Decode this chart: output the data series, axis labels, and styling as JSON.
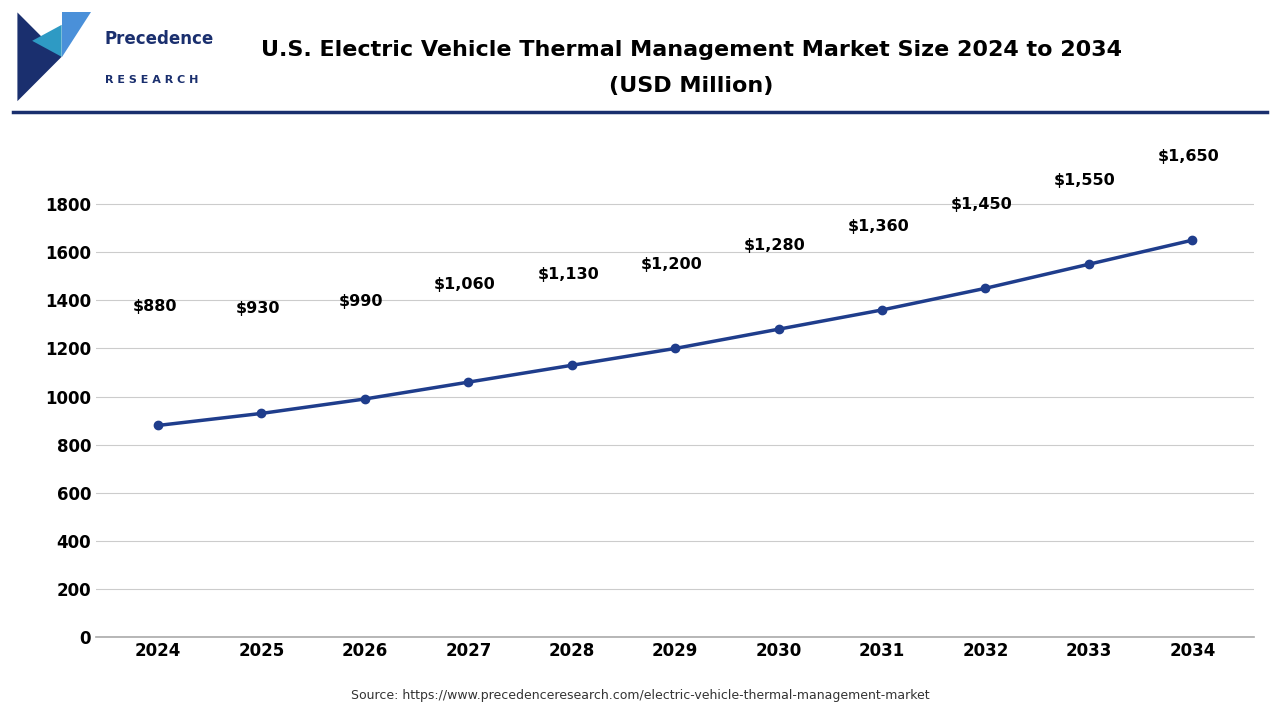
{
  "title_line1": "U.S. Electric Vehicle Thermal Management Market Size 2024 to 2034",
  "title_line2": "(USD Million)",
  "years": [
    2024,
    2025,
    2026,
    2027,
    2028,
    2029,
    2030,
    2031,
    2032,
    2033,
    2034
  ],
  "values": [
    880,
    930,
    990,
    1060,
    1130,
    1200,
    1280,
    1360,
    1450,
    1550,
    1650
  ],
  "labels": [
    "$880",
    "$930",
    "$990",
    "$1,060",
    "$1,130",
    "$1,200",
    "$1,280",
    "$1,360",
    "$1,450",
    "$1,550",
    "$1,650"
  ],
  "line_color": "#1f3d8c",
  "marker_color": "#1f3d8c",
  "bg_color": "#ffffff",
  "plot_bg_color": "#ffffff",
  "grid_color": "#cccccc",
  "ylim": [
    0,
    1900
  ],
  "yticks": [
    0,
    200,
    400,
    600,
    800,
    1000,
    1200,
    1400,
    1600,
    1800
  ],
  "title_fontsize": 16,
  "label_fontsize": 11.5,
  "tick_fontsize": 12,
  "source_text": "Source: https://www.precedenceresearch.com/electric-vehicle-thermal-management-market",
  "logo_text_line1": "Precedence",
  "logo_text_line2": "R E S E A R C H",
  "dark_blue": "#1a2f6e",
  "light_blue": "#4a90d9",
  "teal": "#2e9ac4",
  "header_line_color": "#1a2f6e",
  "label_offsets_x": [
    -0.25,
    -0.25,
    -0.25,
    -0.25,
    -0.25,
    -0.28,
    -0.28,
    -0.28,
    -0.28,
    -0.28,
    -0.28
  ],
  "label_offsets_y": [
    80,
    70,
    65,
    65,
    60,
    55,
    55,
    55,
    55,
    55,
    55
  ]
}
